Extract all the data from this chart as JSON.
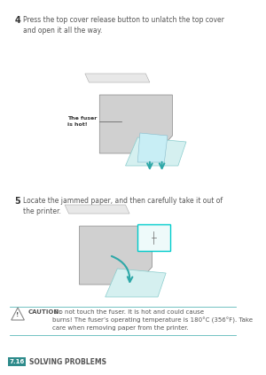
{
  "bg_color": "#ffffff",
  "page_color": "#ffffff",
  "step4_num": "4",
  "step4_text": "Press the top cover release button to unlatch the top cover\nand open it all the way.",
  "step5_num": "5",
  "step5_text": "Locate the jammed paper, and then carefully take it out of\nthe printer.",
  "fuser_label": "The fuser\nis hot!",
  "caution_title": "CAUTION:",
  "caution_text": " Do not touch the fuser. It is hot and could cause\nburns! The fuser’s operating temperature is 180°C (356°F). Take\ncare when removing paper from the printer.",
  "footer_box_color": "#2e8b8b",
  "footer_box_text": "7.16",
  "footer_label": "SOLVING PROBLEMS",
  "line_color": "#5bb8b8",
  "caution_line_color": "#5bb8b8",
  "text_color": "#555555",
  "step_num_color": "#333333",
  "font_size_body": 5.5,
  "font_size_footer": 5.5,
  "font_size_caution": 5.0
}
